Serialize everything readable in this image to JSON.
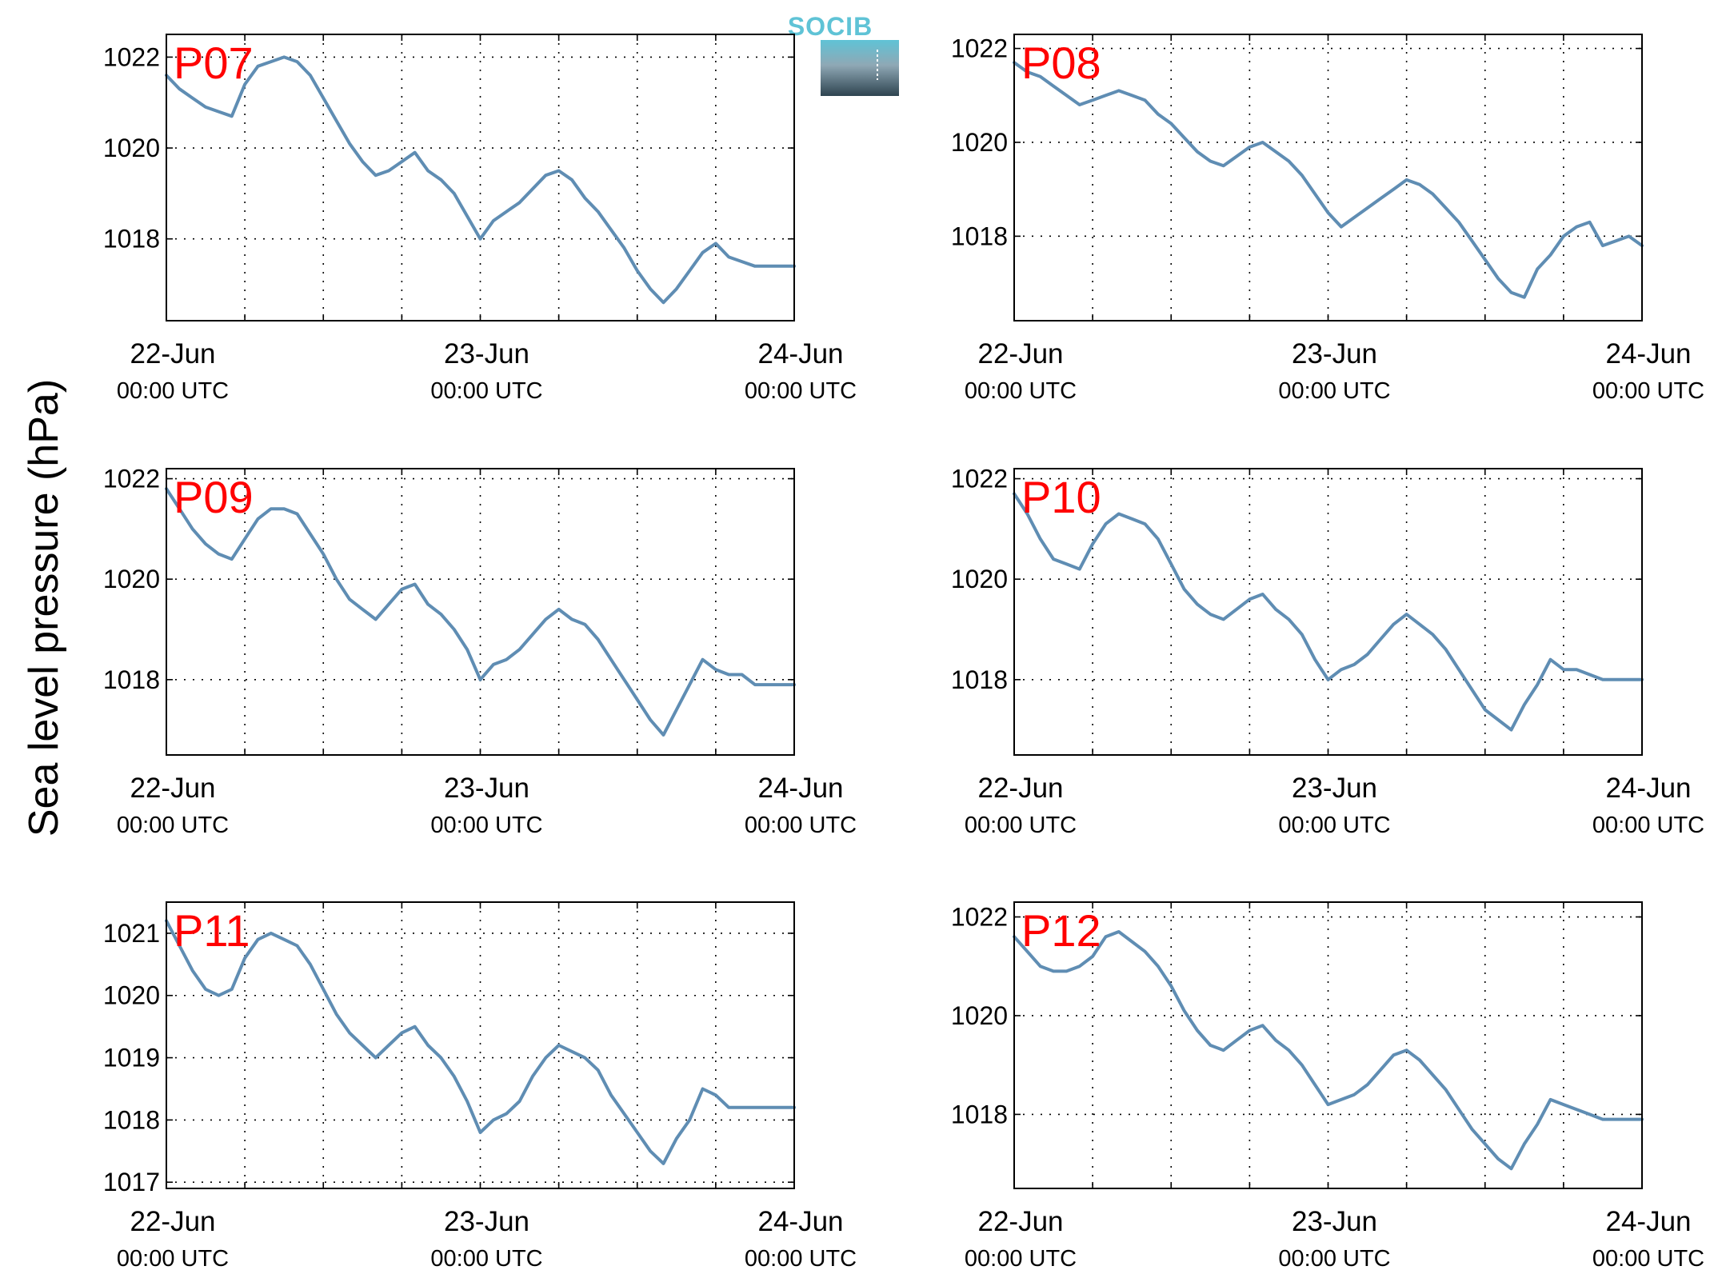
{
  "figure": {
    "ylabel": "Sea level pressure (hPa)",
    "logo_text": "SOCIB",
    "colors": {
      "line": "#5f8db3",
      "label": "#ff0000",
      "grid": "#000000",
      "logo_top": "#5fc3d6",
      "logo_bottom": "#2e4450"
    }
  },
  "chart_data": [
    {
      "type": "line",
      "label": "P07",
      "ylim": [
        1016.2,
        1022.5
      ],
      "yticks": [
        1018,
        1020,
        1022
      ],
      "x_tick_labels": [
        {
          "x": 0,
          "date": "22-Jun",
          "time": "00:00 UTC"
        },
        {
          "x": 24,
          "date": "23-Jun",
          "time": "00:00 UTC"
        },
        {
          "x": 48,
          "date": "24-Jun",
          "time": "00:00 UTC"
        }
      ],
      "xlim": [
        0,
        48
      ],
      "xgrid": [
        0,
        6,
        12,
        18,
        24,
        30,
        36,
        42,
        48
      ],
      "x": [
        0,
        1,
        2,
        3,
        4,
        5,
        6,
        7,
        8,
        9,
        10,
        11,
        12,
        13,
        14,
        15,
        16,
        17,
        18,
        19,
        20,
        21,
        22,
        23,
        24,
        25,
        26,
        27,
        28,
        29,
        30,
        31,
        32,
        33,
        34,
        35,
        36,
        37,
        38,
        39,
        40,
        41,
        42,
        43,
        44,
        45,
        46,
        47,
        48
      ],
      "values": [
        1021.6,
        1021.3,
        1021.1,
        1020.9,
        1020.8,
        1020.7,
        1021.4,
        1021.8,
        1021.9,
        1022.0,
        1021.9,
        1021.6,
        1021.1,
        1020.6,
        1020.1,
        1019.7,
        1019.4,
        1019.5,
        1019.7,
        1019.9,
        1019.5,
        1019.3,
        1019.0,
        1018.5,
        1018.0,
        1018.4,
        1018.6,
        1018.8,
        1019.1,
        1019.4,
        1019.5,
        1019.3,
        1018.9,
        1018.6,
        1018.2,
        1017.8,
        1017.3,
        1016.9,
        1016.6,
        1016.9,
        1017.3,
        1017.7,
        1017.9,
        1017.6,
        1017.5,
        1017.4,
        1017.4,
        1017.4,
        1017.4
      ]
    },
    {
      "type": "line",
      "label": "P08",
      "ylim": [
        1016.2,
        1022.3
      ],
      "yticks": [
        1018,
        1020,
        1022
      ],
      "x_tick_labels": [
        {
          "x": 0,
          "date": "22-Jun",
          "time": "00:00 UTC"
        },
        {
          "x": 24,
          "date": "23-Jun",
          "time": "00:00 UTC"
        },
        {
          "x": 48,
          "date": "24-Jun",
          "time": "00:00 UTC"
        }
      ],
      "xlim": [
        0,
        48
      ],
      "xgrid": [
        0,
        6,
        12,
        18,
        24,
        30,
        36,
        42,
        48
      ],
      "x": [
        0,
        1,
        2,
        3,
        4,
        5,
        6,
        7,
        8,
        9,
        10,
        11,
        12,
        13,
        14,
        15,
        16,
        17,
        18,
        19,
        20,
        21,
        22,
        23,
        24,
        25,
        26,
        27,
        28,
        29,
        30,
        31,
        32,
        33,
        34,
        35,
        36,
        37,
        38,
        39,
        40,
        41,
        42,
        43,
        44,
        45,
        46,
        47,
        48
      ],
      "values": [
        1021.7,
        1021.5,
        1021.4,
        1021.2,
        1021.0,
        1020.8,
        1020.9,
        1021.0,
        1021.1,
        1021.0,
        1020.9,
        1020.6,
        1020.4,
        1020.1,
        1019.8,
        1019.6,
        1019.5,
        1019.7,
        1019.9,
        1020.0,
        1019.8,
        1019.6,
        1019.3,
        1018.9,
        1018.5,
        1018.2,
        1018.4,
        1018.6,
        1018.8,
        1019.0,
        1019.2,
        1019.1,
        1018.9,
        1018.6,
        1018.3,
        1017.9,
        1017.5,
        1017.1,
        1016.8,
        1016.7,
        1017.3,
        1017.6,
        1018.0,
        1018.2,
        1018.3,
        1017.8,
        1017.9,
        1018.0,
        1017.8
      ]
    },
    {
      "type": "line",
      "label": "P09",
      "ylim": [
        1016.5,
        1022.2
      ],
      "yticks": [
        1018,
        1020,
        1022
      ],
      "x_tick_labels": [
        {
          "x": 0,
          "date": "22-Jun",
          "time": "00:00 UTC"
        },
        {
          "x": 24,
          "date": "23-Jun",
          "time": "00:00 UTC"
        },
        {
          "x": 48,
          "date": "24-Jun",
          "time": "00:00 UTC"
        }
      ],
      "xlim": [
        0,
        48
      ],
      "xgrid": [
        0,
        6,
        12,
        18,
        24,
        30,
        36,
        42,
        48
      ],
      "x": [
        0,
        1,
        2,
        3,
        4,
        5,
        6,
        7,
        8,
        9,
        10,
        11,
        12,
        13,
        14,
        15,
        16,
        17,
        18,
        19,
        20,
        21,
        22,
        23,
        24,
        25,
        26,
        27,
        28,
        29,
        30,
        31,
        32,
        33,
        34,
        35,
        36,
        37,
        38,
        39,
        40,
        41,
        42,
        43,
        44,
        45,
        46,
        47,
        48
      ],
      "values": [
        1021.8,
        1021.4,
        1021.0,
        1020.7,
        1020.5,
        1020.4,
        1020.8,
        1021.2,
        1021.4,
        1021.4,
        1021.3,
        1020.9,
        1020.5,
        1020.0,
        1019.6,
        1019.4,
        1019.2,
        1019.5,
        1019.8,
        1019.9,
        1019.5,
        1019.3,
        1019.0,
        1018.6,
        1018.0,
        1018.3,
        1018.4,
        1018.6,
        1018.9,
        1019.2,
        1019.4,
        1019.2,
        1019.1,
        1018.8,
        1018.4,
        1018.0,
        1017.6,
        1017.2,
        1016.9,
        1017.4,
        1017.9,
        1018.4,
        1018.2,
        1018.1,
        1018.1,
        1017.9,
        1017.9,
        1017.9,
        1017.9
      ]
    },
    {
      "type": "line",
      "label": "P10",
      "ylim": [
        1016.5,
        1022.2
      ],
      "yticks": [
        1018,
        1020,
        1022
      ],
      "x_tick_labels": [
        {
          "x": 0,
          "date": "22-Jun",
          "time": "00:00 UTC"
        },
        {
          "x": 24,
          "date": "23-Jun",
          "time": "00:00 UTC"
        },
        {
          "x": 48,
          "date": "24-Jun",
          "time": "00:00 UTC"
        }
      ],
      "xlim": [
        0,
        48
      ],
      "xgrid": [
        0,
        6,
        12,
        18,
        24,
        30,
        36,
        42,
        48
      ],
      "x": [
        0,
        1,
        2,
        3,
        4,
        5,
        6,
        7,
        8,
        9,
        10,
        11,
        12,
        13,
        14,
        15,
        16,
        17,
        18,
        19,
        20,
        21,
        22,
        23,
        24,
        25,
        26,
        27,
        28,
        29,
        30,
        31,
        32,
        33,
        34,
        35,
        36,
        37,
        38,
        39,
        40,
        41,
        42,
        43,
        44,
        45,
        46,
        47,
        48
      ],
      "values": [
        1021.7,
        1021.3,
        1020.8,
        1020.4,
        1020.3,
        1020.2,
        1020.7,
        1021.1,
        1021.3,
        1021.2,
        1021.1,
        1020.8,
        1020.3,
        1019.8,
        1019.5,
        1019.3,
        1019.2,
        1019.4,
        1019.6,
        1019.7,
        1019.4,
        1019.2,
        1018.9,
        1018.4,
        1018.0,
        1018.2,
        1018.3,
        1018.5,
        1018.8,
        1019.1,
        1019.3,
        1019.1,
        1018.9,
        1018.6,
        1018.2,
        1017.8,
        1017.4,
        1017.2,
        1017.0,
        1017.5,
        1017.9,
        1018.4,
        1018.2,
        1018.2,
        1018.1,
        1018.0,
        1018.0,
        1018.0,
        1018.0
      ]
    },
    {
      "type": "line",
      "label": "P11",
      "ylim": [
        1016.9,
        1021.5
      ],
      "yticks": [
        1017,
        1018,
        1019,
        1020,
        1021
      ],
      "x_tick_labels": [
        {
          "x": 0,
          "date": "22-Jun",
          "time": "00:00 UTC"
        },
        {
          "x": 24,
          "date": "23-Jun",
          "time": "00:00 UTC"
        },
        {
          "x": 48,
          "date": "24-Jun",
          "time": "00:00 UTC"
        }
      ],
      "xlim": [
        0,
        48
      ],
      "xgrid": [
        0,
        6,
        12,
        18,
        24,
        30,
        36,
        42,
        48
      ],
      "x": [
        0,
        1,
        2,
        3,
        4,
        5,
        6,
        7,
        8,
        9,
        10,
        11,
        12,
        13,
        14,
        15,
        16,
        17,
        18,
        19,
        20,
        21,
        22,
        23,
        24,
        25,
        26,
        27,
        28,
        29,
        30,
        31,
        32,
        33,
        34,
        35,
        36,
        37,
        38,
        39,
        40,
        41,
        42,
        43,
        44,
        45,
        46,
        47,
        48
      ],
      "values": [
        1021.2,
        1020.8,
        1020.4,
        1020.1,
        1020.0,
        1020.1,
        1020.6,
        1020.9,
        1021.0,
        1020.9,
        1020.8,
        1020.5,
        1020.1,
        1019.7,
        1019.4,
        1019.2,
        1019.0,
        1019.2,
        1019.4,
        1019.5,
        1019.2,
        1019.0,
        1018.7,
        1018.3,
        1017.8,
        1018.0,
        1018.1,
        1018.3,
        1018.7,
        1019.0,
        1019.2,
        1019.1,
        1019.0,
        1018.8,
        1018.4,
        1018.1,
        1017.8,
        1017.5,
        1017.3,
        1017.7,
        1018.0,
        1018.5,
        1018.4,
        1018.2,
        1018.2,
        1018.2,
        1018.2,
        1018.2,
        1018.2
      ]
    },
    {
      "type": "line",
      "label": "P12",
      "ylim": [
        1016.5,
        1022.3
      ],
      "yticks": [
        1018,
        1020,
        1022
      ],
      "x_tick_labels": [
        {
          "x": 0,
          "date": "22-Jun",
          "time": "00:00 UTC"
        },
        {
          "x": 24,
          "date": "23-Jun",
          "time": "00:00 UTC"
        },
        {
          "x": 48,
          "date": "24-Jun",
          "time": "00:00 UTC"
        }
      ],
      "xlim": [
        0,
        48
      ],
      "xgrid": [
        0,
        6,
        12,
        18,
        24,
        30,
        36,
        42,
        48
      ],
      "x": [
        0,
        1,
        2,
        3,
        4,
        5,
        6,
        7,
        8,
        9,
        10,
        11,
        12,
        13,
        14,
        15,
        16,
        17,
        18,
        19,
        20,
        21,
        22,
        23,
        24,
        25,
        26,
        27,
        28,
        29,
        30,
        31,
        32,
        33,
        34,
        35,
        36,
        37,
        38,
        39,
        40,
        41,
        42,
        43,
        44,
        45,
        46,
        47,
        48
      ],
      "values": [
        1021.6,
        1021.3,
        1021.0,
        1020.9,
        1020.9,
        1021.0,
        1021.2,
        1021.6,
        1021.7,
        1021.5,
        1021.3,
        1021.0,
        1020.6,
        1020.1,
        1019.7,
        1019.4,
        1019.3,
        1019.5,
        1019.7,
        1019.8,
        1019.5,
        1019.3,
        1019.0,
        1018.6,
        1018.2,
        1018.3,
        1018.4,
        1018.6,
        1018.9,
        1019.2,
        1019.3,
        1019.1,
        1018.8,
        1018.5,
        1018.1,
        1017.7,
        1017.4,
        1017.1,
        1016.9,
        1017.4,
        1017.8,
        1018.3,
        1018.2,
        1018.1,
        1018.0,
        1017.9,
        1017.9,
        1017.9,
        1017.9
      ]
    }
  ]
}
